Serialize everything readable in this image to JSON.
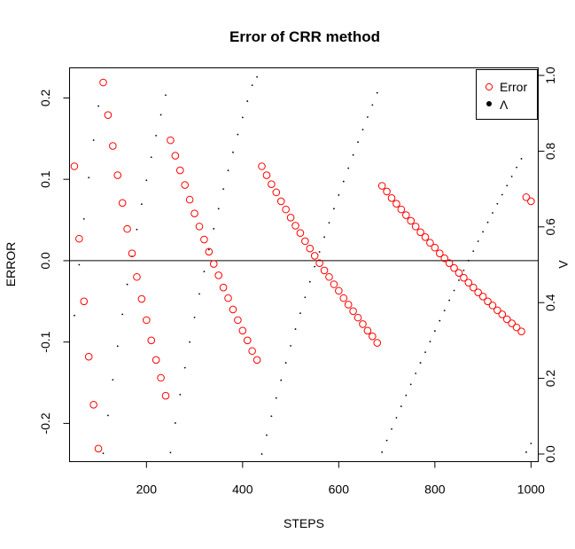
{
  "chart_data": {
    "type": "scatter",
    "title": "Error of CRR method",
    "xlabel": "STEPS",
    "ylabel": "ERROR",
    "y2label": "Λ",
    "xlim": [
      40,
      1015
    ],
    "ylim": [
      -0.247,
      0.237
    ],
    "y2lim": [
      -0.02,
      1.02
    ],
    "x_ticks": [
      200,
      400,
      600,
      800,
      1000
    ],
    "y_ticks": [
      -0.2,
      -0.1,
      0.0,
      0.1,
      0.2
    ],
    "y2_ticks": [
      0.0,
      0.2,
      0.4,
      0.6,
      0.8,
      1.0
    ],
    "hline": 0,
    "legend": {
      "position": "top-right",
      "entries": [
        {
          "label": "Error",
          "marker": "open-circle",
          "color": "#ff0000"
        },
        {
          "label": "Λ",
          "marker": "filled-dot",
          "color": "#000000"
        }
      ]
    },
    "series": [
      {
        "name": "Error",
        "marker": "open-circle",
        "color": "#ff0000",
        "points": [
          [
            50,
            0.116
          ],
          [
            60,
            0.027
          ],
          [
            70,
            -0.05
          ],
          [
            80,
            -0.118
          ],
          [
            90,
            -0.177
          ],
          [
            100,
            -0.231
          ],
          [
            110,
            0.219
          ],
          [
            120,
            0.179
          ],
          [
            130,
            0.141
          ],
          [
            140,
            0.105
          ],
          [
            150,
            0.071
          ],
          [
            160,
            0.039
          ],
          [
            170,
            0.009
          ],
          [
            180,
            -0.02
          ],
          [
            190,
            -0.047
          ],
          [
            200,
            -0.073
          ],
          [
            210,
            -0.098
          ],
          [
            220,
            -0.122
          ],
          [
            230,
            -0.144
          ],
          [
            240,
            -0.166
          ],
          [
            250,
            0.148
          ],
          [
            260,
            0.129
          ],
          [
            270,
            0.111
          ],
          [
            280,
            0.093
          ],
          [
            290,
            0.075
          ],
          [
            300,
            0.058
          ],
          [
            310,
            0.042
          ],
          [
            320,
            0.026
          ],
          [
            330,
            0.011
          ],
          [
            340,
            -0.004
          ],
          [
            350,
            -0.018
          ],
          [
            360,
            -0.033
          ],
          [
            370,
            -0.046
          ],
          [
            380,
            -0.06
          ],
          [
            390,
            -0.073
          ],
          [
            400,
            -0.086
          ],
          [
            410,
            -0.098
          ],
          [
            420,
            -0.111
          ],
          [
            430,
            -0.122
          ],
          [
            440,
            0.116
          ],
          [
            450,
            0.105
          ],
          [
            460,
            0.094
          ],
          [
            470,
            0.084
          ],
          [
            480,
            0.073
          ],
          [
            490,
            0.063
          ],
          [
            500,
            0.053
          ],
          [
            510,
            0.043
          ],
          [
            520,
            0.034
          ],
          [
            530,
            0.024
          ],
          [
            540,
            0.015
          ],
          [
            550,
            0.006
          ],
          [
            560,
            -0.003
          ],
          [
            570,
            -0.012
          ],
          [
            580,
            -0.02
          ],
          [
            590,
            -0.029
          ],
          [
            600,
            -0.037
          ],
          [
            610,
            -0.046
          ],
          [
            620,
            -0.054
          ],
          [
            630,
            -0.062
          ],
          [
            640,
            -0.07
          ],
          [
            650,
            -0.078
          ],
          [
            660,
            -0.086
          ],
          [
            670,
            -0.093
          ],
          [
            680,
            -0.101
          ],
          [
            690,
            0.092
          ],
          [
            700,
            0.085
          ],
          [
            710,
            0.077
          ],
          [
            720,
            0.07
          ],
          [
            730,
            0.063
          ],
          [
            740,
            0.056
          ],
          [
            750,
            0.049
          ],
          [
            760,
            0.042
          ],
          [
            770,
            0.035
          ],
          [
            780,
            0.029
          ],
          [
            790,
            0.022
          ],
          [
            800,
            0.016
          ],
          [
            810,
            0.009
          ],
          [
            820,
            0.003
          ],
          [
            830,
            -0.003
          ],
          [
            840,
            -0.009
          ],
          [
            850,
            -0.015
          ],
          [
            860,
            -0.021
          ],
          [
            870,
            -0.027
          ],
          [
            880,
            -0.033
          ],
          [
            890,
            -0.039
          ],
          [
            900,
            -0.044
          ],
          [
            910,
            -0.05
          ],
          [
            920,
            -0.055
          ],
          [
            930,
            -0.061
          ],
          [
            940,
            -0.066
          ],
          [
            950,
            -0.072
          ],
          [
            960,
            -0.077
          ],
          [
            970,
            -0.082
          ],
          [
            980,
            -0.087
          ],
          [
            990,
            0.078
          ],
          [
            1000,
            0.073
          ]
        ]
      },
      {
        "name": "Λ",
        "marker": "filled-dot",
        "color": "#000000",
        "axis": "right",
        "points": [
          [
            50,
            0.366
          ],
          [
            60,
            0.5
          ],
          [
            70,
            0.621
          ],
          [
            80,
            0.73
          ],
          [
            90,
            0.829
          ],
          [
            100,
            0.919
          ],
          [
            110,
            0.002
          ],
          [
            120,
            0.102
          ],
          [
            130,
            0.196
          ],
          [
            140,
            0.285
          ],
          [
            150,
            0.369
          ],
          [
            160,
            0.448
          ],
          [
            170,
            0.522
          ],
          [
            180,
            0.593
          ],
          [
            190,
            0.66
          ],
          [
            200,
            0.723
          ],
          [
            210,
            0.784
          ],
          [
            220,
            0.841
          ],
          [
            230,
            0.896
          ],
          [
            240,
            0.948
          ],
          [
            250,
            0.004
          ],
          [
            260,
            0.082
          ],
          [
            270,
            0.157
          ],
          [
            280,
            0.228
          ],
          [
            290,
            0.296
          ],
          [
            300,
            0.361
          ],
          [
            310,
            0.423
          ],
          [
            320,
            0.482
          ],
          [
            330,
            0.54
          ],
          [
            340,
            0.595
          ],
          [
            350,
            0.648
          ],
          [
            360,
            0.7
          ],
          [
            370,
            0.749
          ],
          [
            380,
            0.797
          ],
          [
            390,
            0.844
          ],
          [
            400,
            0.889
          ],
          [
            410,
            0.932
          ],
          [
            420,
            0.974
          ],
          [
            430,
            0.996
          ],
          [
            440,
            0.0
          ],
          [
            450,
            0.05
          ],
          [
            460,
            0.1
          ],
          [
            470,
            0.148
          ],
          [
            480,
            0.195
          ],
          [
            490,
            0.241
          ],
          [
            500,
            0.286
          ],
          [
            510,
            0.33
          ],
          [
            520,
            0.372
          ],
          [
            530,
            0.414
          ],
          [
            540,
            0.455
          ],
          [
            550,
            0.495
          ],
          [
            560,
            0.534
          ],
          [
            570,
            0.573
          ],
          [
            580,
            0.611
          ],
          [
            590,
            0.648
          ],
          [
            600,
            0.684
          ],
          [
            610,
            0.72
          ],
          [
            620,
            0.755
          ],
          [
            630,
            0.79
          ],
          [
            640,
            0.824
          ],
          [
            650,
            0.857
          ],
          [
            660,
            0.89
          ],
          [
            670,
            0.922
          ],
          [
            680,
            0.954
          ],
          [
            690,
            0.005
          ],
          [
            700,
            0.036
          ],
          [
            710,
            0.066
          ],
          [
            720,
            0.096
          ],
          [
            730,
            0.126
          ],
          [
            740,
            0.155
          ],
          [
            750,
            0.184
          ],
          [
            760,
            0.213
          ],
          [
            770,
            0.241
          ],
          [
            780,
            0.269
          ],
          [
            790,
            0.297
          ],
          [
            800,
            0.325
          ],
          [
            810,
            0.352
          ],
          [
            820,
            0.379
          ],
          [
            830,
            0.406
          ],
          [
            840,
            0.432
          ],
          [
            850,
            0.459
          ],
          [
            860,
            0.485
          ],
          [
            870,
            0.511
          ],
          [
            880,
            0.536
          ],
          [
            890,
            0.562
          ],
          [
            900,
            0.587
          ],
          [
            910,
            0.612
          ],
          [
            920,
            0.637
          ],
          [
            930,
            0.661
          ],
          [
            940,
            0.685
          ],
          [
            950,
            0.709
          ],
          [
            960,
            0.733
          ],
          [
            970,
            0.757
          ],
          [
            980,
            0.78
          ],
          [
            990,
            0.005
          ],
          [
            1000,
            0.028
          ]
        ]
      }
    ]
  }
}
